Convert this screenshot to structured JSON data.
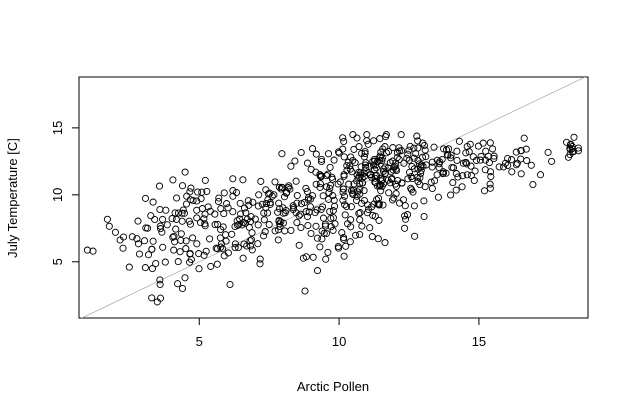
{
  "chart_data": {
    "type": "scatter",
    "title": "",
    "xlabel": "Arctic Pollen",
    "ylabel": "July Temperature [C]",
    "xlim": [
      0.7,
      18.9
    ],
    "ylim": [
      0.8,
      18.8
    ],
    "xticks": [
      5,
      10,
      15
    ],
    "yticks": [
      5,
      10,
      15
    ],
    "xtick_labels": [
      "5",
      "10",
      "15"
    ],
    "ytick_labels": [
      "5",
      "10",
      "15"
    ],
    "grid": false,
    "marker": "open-circle",
    "reference_line": {
      "type": "identity",
      "slope": 1,
      "intercept": 0,
      "color": "#b0b0b0"
    },
    "clusters": [
      {
        "cx": 2.0,
        "cy": 6.5,
        "sx": 0.7,
        "sy": 1.2,
        "n": 6
      },
      {
        "cx": 3.8,
        "cy": 7.0,
        "sx": 0.6,
        "sy": 1.8,
        "n": 45
      },
      {
        "cx": 5.0,
        "cy": 7.2,
        "sx": 0.8,
        "sy": 1.8,
        "n": 55
      },
      {
        "cx": 6.5,
        "cy": 8.3,
        "sx": 0.8,
        "sy": 1.8,
        "n": 60
      },
      {
        "cx": 8.0,
        "cy": 9.0,
        "sx": 0.8,
        "sy": 1.8,
        "n": 65
      },
      {
        "cx": 9.5,
        "cy": 9.6,
        "sx": 0.7,
        "sy": 2.0,
        "n": 75
      },
      {
        "cx": 10.8,
        "cy": 11.5,
        "sx": 0.7,
        "sy": 1.3,
        "n": 85
      },
      {
        "cx": 12.0,
        "cy": 11.7,
        "sx": 0.7,
        "sy": 1.4,
        "n": 90
      },
      {
        "cx": 11.3,
        "cy": 8.0,
        "sx": 0.8,
        "sy": 0.9,
        "n": 30
      },
      {
        "cx": 13.5,
        "cy": 12.0,
        "sx": 0.8,
        "sy": 0.9,
        "n": 55
      },
      {
        "cx": 15.0,
        "cy": 12.4,
        "sx": 0.8,
        "sy": 0.9,
        "n": 35
      },
      {
        "cx": 16.5,
        "cy": 12.4,
        "sx": 0.6,
        "sy": 0.9,
        "n": 12
      },
      {
        "cx": 18.3,
        "cy": 13.5,
        "sx": 0.15,
        "sy": 0.5,
        "n": 12
      }
    ],
    "extra_points": [
      [
        1.2,
        5.8
      ],
      [
        2.0,
        7.2
      ],
      [
        2.5,
        4.6
      ],
      [
        3.3,
        2.3
      ],
      [
        3.5,
        2.0
      ],
      [
        3.6,
        3.3
      ],
      [
        4.4,
        3.0
      ],
      [
        4.7,
        10.5
      ],
      [
        6.1,
        3.3
      ],
      [
        6.2,
        11.2
      ],
      [
        7.2,
        11.0
      ],
      [
        9.6,
        5.7
      ],
      [
        10.4,
        6.5
      ],
      [
        12.7,
        6.9
      ],
      [
        14.3,
        14.0
      ],
      [
        15.2,
        10.3
      ],
      [
        15.4,
        10.8
      ],
      [
        17.2,
        11.5
      ],
      [
        17.6,
        12.5
      ],
      [
        18.2,
        12.8
      ],
      [
        18.4,
        14.3
      ],
      [
        16.5,
        13.3
      ]
    ]
  }
}
